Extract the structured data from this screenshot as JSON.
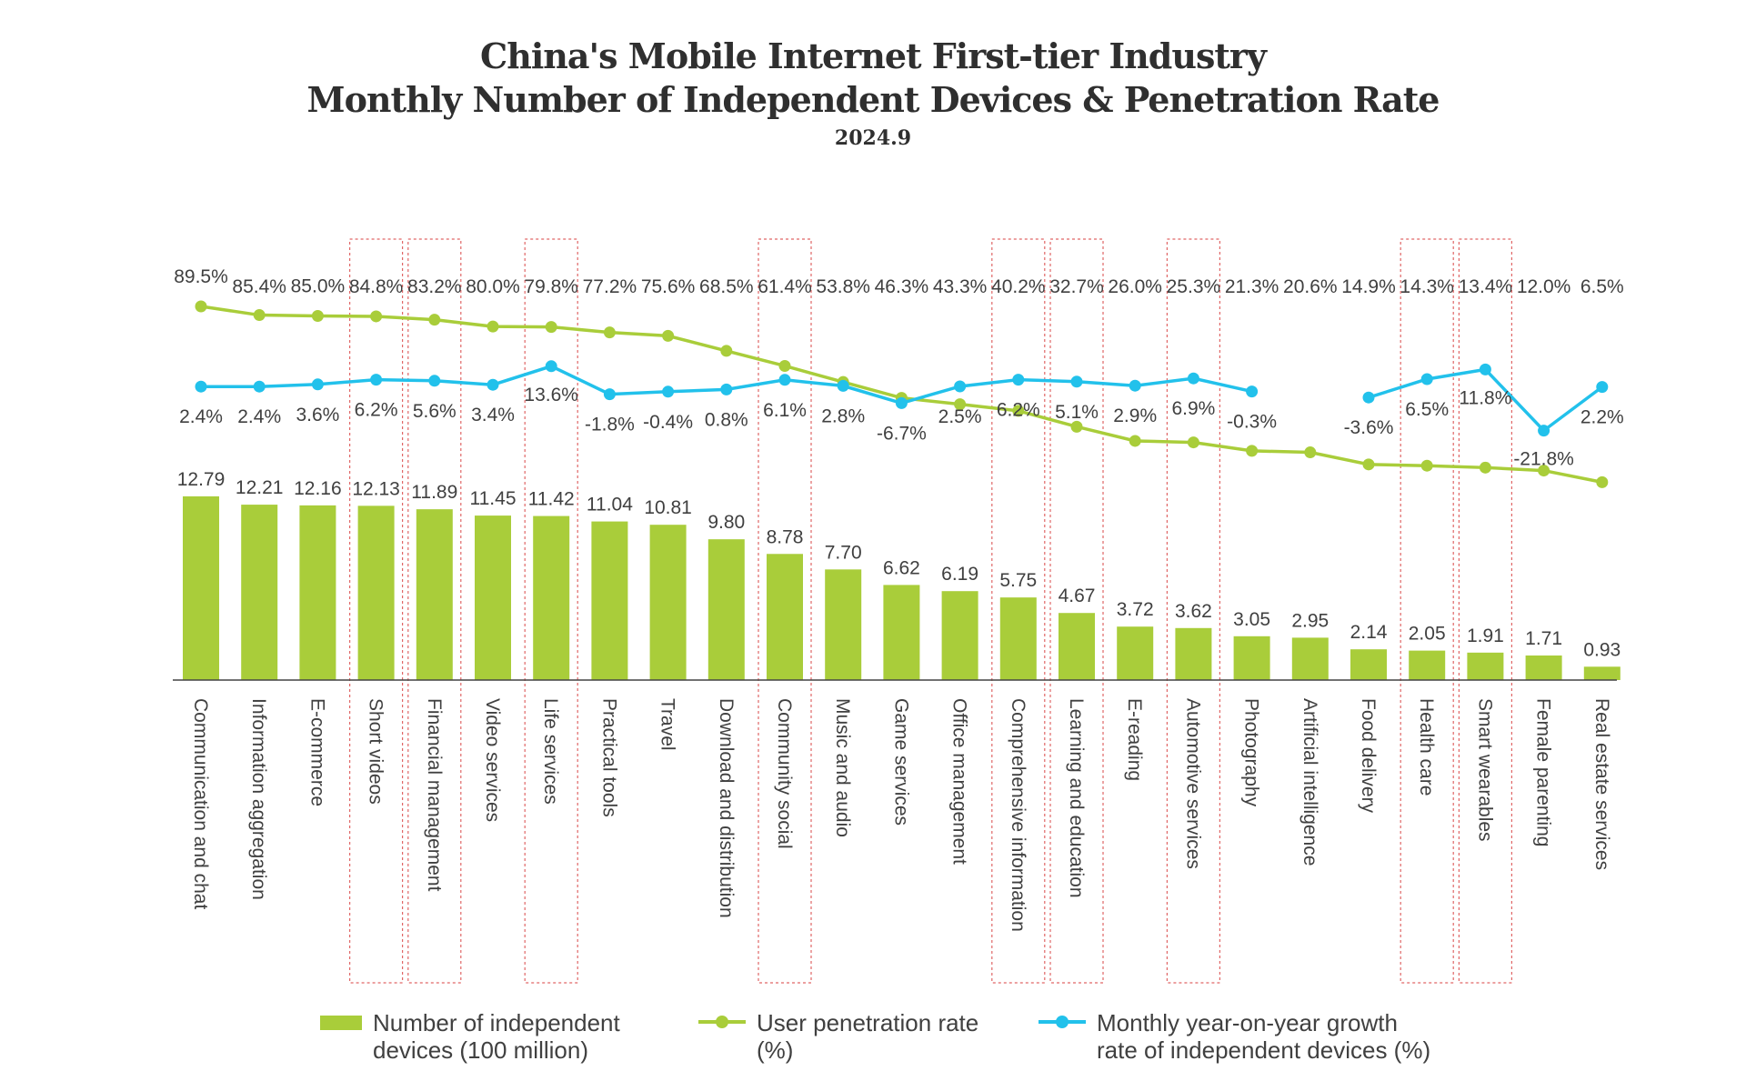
{
  "colors": {
    "bar": "#a9cd3a",
    "penetration_line": "#a9cd3a",
    "growth_line": "#22c1eb",
    "highlight_box": "#e06666",
    "text": "#404040"
  },
  "chart_data": {
    "type": "bar",
    "title": [
      "China's Mobile Internet First-tier Industry",
      "Monthly Number of Independent Devices & Penetration Rate"
    ],
    "subtitle": "2024.9",
    "categories": [
      "Communication and chat",
      "Information aggregation",
      "E-commerce",
      "Short videos",
      "Financial management",
      "Video services",
      "Life services",
      "Practical tools",
      "Travel",
      "Download and distribution",
      "Community social",
      "Music and audio",
      "Game services",
      "Office management",
      "Comprehensive information",
      "Learning and education",
      "E-reading",
      "Automotive services",
      "Photography",
      "Artificial intelligence",
      "Food delivery",
      "Health care",
      "Smart wearables",
      "Female parenting",
      "Real estate services"
    ],
    "series": [
      {
        "name": "Number of independent devices (100 million)",
        "type": "bar",
        "values": [
          12.79,
          12.21,
          12.16,
          12.13,
          11.89,
          11.45,
          11.42,
          11.04,
          10.81,
          9.8,
          8.78,
          7.7,
          6.62,
          6.19,
          5.75,
          4.67,
          3.72,
          3.62,
          3.05,
          2.95,
          2.14,
          2.05,
          1.91,
          1.71,
          0.93
        ],
        "labels": [
          "12.79",
          "12.21",
          "12.16",
          "12.13",
          "11.89",
          "11.45",
          "11.42",
          "11.04",
          "10.81",
          "9.80",
          "8.78",
          "7.70",
          "6.62",
          "6.19",
          "5.75",
          "4.67",
          "3.72",
          "3.62",
          "3.05",
          "2.95",
          "2.14",
          "2.05",
          "1.91",
          "1.71",
          "0.93"
        ]
      },
      {
        "name": "User penetration rate (%)",
        "type": "line",
        "values": [
          89.5,
          85.4,
          85.0,
          84.8,
          83.2,
          80.0,
          79.8,
          77.2,
          75.6,
          68.5,
          61.4,
          53.8,
          46.3,
          43.3,
          40.2,
          32.7,
          26.0,
          25.3,
          21.3,
          20.6,
          14.9,
          14.3,
          13.4,
          12.0,
          6.5
        ],
        "labels": [
          "89.5%",
          "85.4%",
          "85.0%",
          "84.8%",
          "83.2%",
          "80.0%",
          "79.8%",
          "77.2%",
          "75.6%",
          "68.5%",
          "61.4%",
          "53.8%",
          "46.3%",
          "43.3%",
          "40.2%",
          "32.7%",
          "26.0%",
          "25.3%",
          "21.3%",
          "20.6%",
          "14.9%",
          "14.3%",
          "13.4%",
          "12.0%",
          "6.5%"
        ]
      },
      {
        "name": "Monthly year-on-year growth rate of independent devices (%)",
        "type": "line",
        "values": [
          2.4,
          2.4,
          3.6,
          6.2,
          5.6,
          3.4,
          13.6,
          -1.8,
          -0.4,
          0.8,
          6.1,
          2.8,
          -6.7,
          2.5,
          6.2,
          5.1,
          2.9,
          6.9,
          -0.3,
          null,
          -3.6,
          6.5,
          11.8,
          -21.8,
          2.2
        ],
        "labels": [
          "2.4%",
          "2.4%",
          "3.6%",
          "6.2%",
          "5.6%",
          "3.4%",
          "13.6%",
          "-1.8%",
          "-0.4%",
          "0.8%",
          "6.1%",
          "2.8%",
          "-6.7%",
          "2.5%",
          "6.2%",
          "5.1%",
          "2.9%",
          "6.9%",
          "-0.3%",
          "",
          "-3.6%",
          "6.5%",
          "11.8%",
          "-21.8%",
          "2.2%"
        ]
      }
    ],
    "highlighted_categories": [
      "Short videos",
      "Financial management",
      "Life services",
      "Community social",
      "Comprehensive information",
      "Learning and education",
      "Automotive services",
      "Health care",
      "Smart wearables"
    ],
    "legend": [
      "Number of independent devices (100 million)",
      "User penetration rate (%)",
      "Monthly year-on-year growth rate of independent devices (%)"
    ],
    "legend_position": "bottom",
    "grid": false
  },
  "legend_text": {
    "bar": [
      "Number of independent",
      "devices (100 million)"
    ],
    "penetration": [
      "User penetration rate",
      "(%)"
    ],
    "growth": [
      "Monthly year-on-year growth",
      "rate of independent devices (%)"
    ]
  }
}
